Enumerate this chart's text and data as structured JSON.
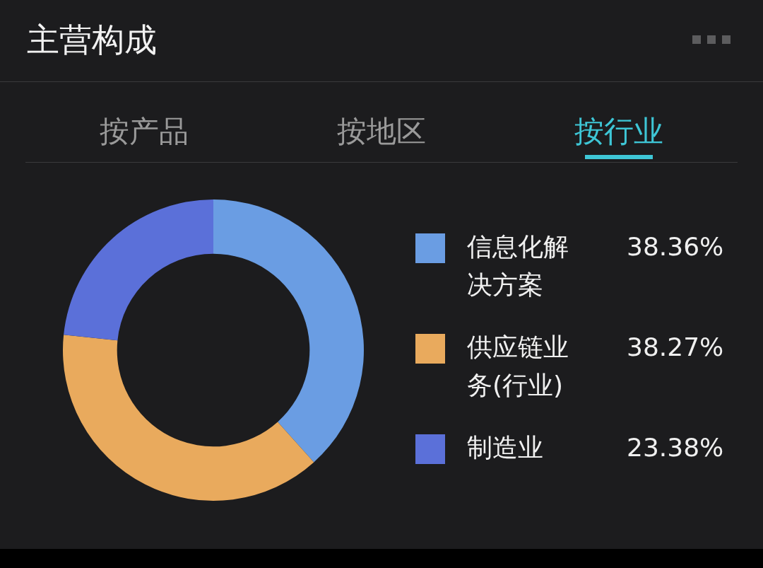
{
  "chart_data": {
    "type": "donut",
    "title": "主营构成",
    "annotations": [
      "按产品",
      "按地区",
      "按行业"
    ],
    "categories": [
      "信息化解决方案",
      "供应链业务(行业)",
      "制造业"
    ],
    "values": [
      38.36,
      38.27,
      23.38
    ],
    "colors": [
      "#6a9de3",
      "#e9aa5d",
      "#5b70d9"
    ],
    "value_labels": [
      "38.36%",
      "38.27%",
      "23.38%"
    ],
    "legend": "right"
  }
}
